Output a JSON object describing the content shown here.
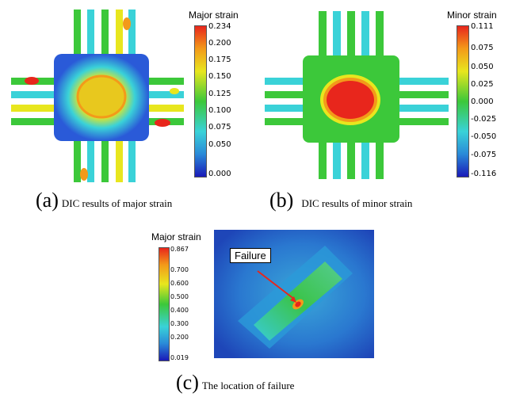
{
  "panel_a": {
    "colorbar_title": "Major strain",
    "ticks": [
      "0.234",
      "0.200",
      "0.175",
      "0.150",
      "0.125",
      "0.100",
      "0.075",
      "0.050",
      "0.000"
    ],
    "caption_letter": "(a)",
    "caption_text": "DIC results of major strain"
  },
  "panel_b": {
    "colorbar_title": "Minor strain",
    "ticks": [
      "0.111",
      "0.075",
      "0.050",
      "0.025",
      "0.000",
      "-0.025",
      "-0.050",
      "-0.075",
      "-0.116"
    ],
    "caption_letter": "(b)",
    "caption_text": "DIC results of minor strain"
  },
  "panel_c": {
    "colorbar_title": "Major strain",
    "ticks": [
      "0.867",
      "0.700",
      "0.600",
      "0.500",
      "0.400",
      "0.300",
      "0.200",
      "0.019"
    ],
    "callout_label": "Failure",
    "caption_letter": "(c)",
    "caption_text": "The location of failure"
  },
  "colors": {
    "red": "#e8261c",
    "orange": "#f39a1a",
    "yellow": "#e8e61e",
    "green": "#3cc83a",
    "cyan": "#3ad2d8",
    "blue": "#2a5ad8",
    "deep_blue": "#1a1ab8"
  }
}
